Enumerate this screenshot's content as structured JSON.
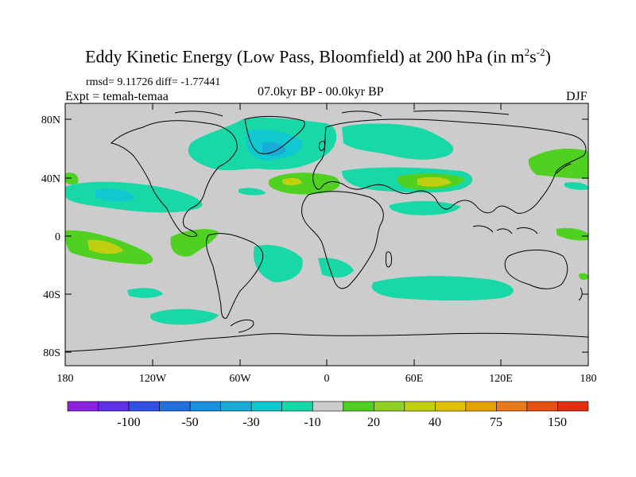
{
  "title_main": "Eddy Kinetic Energy (Low Pass, Bloomfield) at 200 hPa (in m",
  "title_sup1": "2",
  "title_mid": "s",
  "title_sup2": "-2",
  "title_end": ")",
  "stats": "rmsd= 9.11726 diff= -1.77441",
  "experiment": "Expt = temah-temaa",
  "period": "07.0kyr BP - 00.0kyr BP",
  "season": "DJF",
  "lat_labels": [
    "80N",
    "40N",
    "0",
    "40S",
    "80S"
  ],
  "lon_labels": [
    "180",
    "120W",
    "60W",
    "0",
    "60E",
    "120E",
    "180"
  ],
  "colorbar": {
    "labels": [
      "-100",
      "-50",
      "-30",
      "-10",
      "20",
      "40",
      "75",
      "150"
    ],
    "colors": [
      "#8c20e0",
      "#6030e8",
      "#3050e8",
      "#2070e0",
      "#1890e0",
      "#18acd8",
      "#10c8d0",
      "#18d8a8",
      "#cccccc",
      "#50d020",
      "#90d020",
      "#c0d010",
      "#e0c000",
      "#e8a000",
      "#e87818",
      "#e85010",
      "#e03010"
    ]
  },
  "map_colors": {
    "ocean_background": "#cccccc",
    "cyan": "#18d8a8",
    "teal": "#10c8d0",
    "lightblue": "#18acd8",
    "green": "#50d020",
    "yellowgreen": "#c0d010",
    "yellow": "#e0c000"
  }
}
